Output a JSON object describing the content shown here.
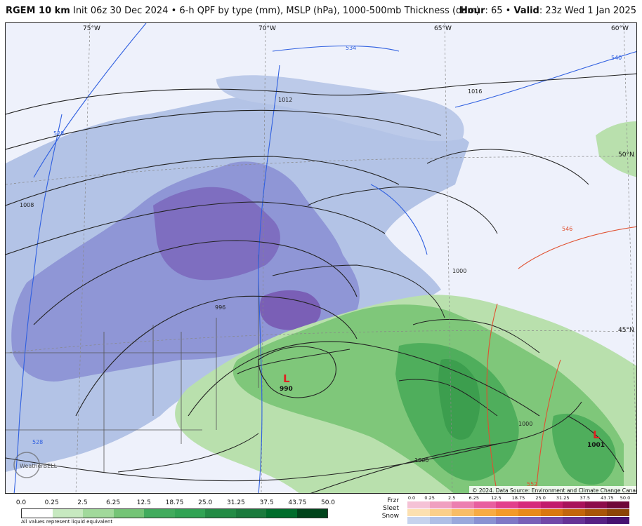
{
  "header": {
    "model": "RGEM 10 km",
    "init": "Init 06z 30 Dec 2024 • 6-h QPF by type (mm), MSLP (hPa), 1000-500mb Thickness (dam)",
    "hour_label": "Hour",
    "hour_value": ": 65 • ",
    "valid_label": "Valid",
    "valid_value": ": 23z Wed 1 Jan 2025"
  },
  "map": {
    "lon_labels": [
      "75°W",
      "70°W",
      "65°W",
      "60°W"
    ],
    "lat_labels": [
      "50°N",
      "45°N"
    ],
    "pressure_centers": [
      {
        "letter": "L",
        "value": "990",
        "color": "#e02020"
      },
      {
        "letter": "L",
        "value": "1001",
        "color": "#e02020"
      }
    ],
    "isobar_labels": [
      "1012",
      "1016",
      "1008",
      "996",
      "1000",
      "1000",
      "1000"
    ],
    "thickness_labels": [
      "534",
      "540",
      "528",
      "528",
      "546",
      "552"
    ],
    "watermark": "WeatherBELL",
    "credit": "© 2024. Data Source: Environment and Climate Change Canada."
  },
  "legend": {
    "qpf_ticks": [
      "0.0",
      "0.25",
      "2.5",
      "6.25",
      "12.5",
      "18.75",
      "25.0",
      "31.25",
      "37.5",
      "43.75",
      "50.0"
    ],
    "qpf_colors": [
      "#ffffff",
      "#c7e9c0",
      "#a1d99b",
      "#74c476",
      "#41ab5d",
      "#31a354",
      "#238b45",
      "#1b7a3d",
      "#006d2c",
      "#00441b"
    ],
    "qpf_note": "All values represent liquid equivalent",
    "ptype_types": [
      "Frzr",
      "Sleet",
      "Snow"
    ],
    "ptype_ticks": [
      "0.0",
      "0.25",
      "2.5",
      "6.25",
      "12.5",
      "18.75",
      "25.0",
      "31.25",
      "37.5",
      "43.75",
      "50.0"
    ],
    "ptype_frzr_colors": [
      "#f5c2d6",
      "#f0a0c0",
      "#ec7fb0",
      "#e85f9f",
      "#e2408c",
      "#d62a7c",
      "#c21a6c",
      "#a8125a",
      "#8c0c4a",
      "#700839"
    ],
    "ptype_sleet_colors": [
      "#fce0b0",
      "#fbcf8a",
      "#f9bd66",
      "#f7ab44",
      "#f39a2a",
      "#e98a1a",
      "#d97810",
      "#c2660c",
      "#a85508",
      "#8c4506"
    ],
    "ptype_snow_colors": [
      "#c6d3ee",
      "#afbfe6",
      "#9aa9dc",
      "#8a92d2",
      "#8078c6",
      "#7a60b8",
      "#7248a8",
      "#663396",
      "#572184",
      "#461270"
    ]
  }
}
